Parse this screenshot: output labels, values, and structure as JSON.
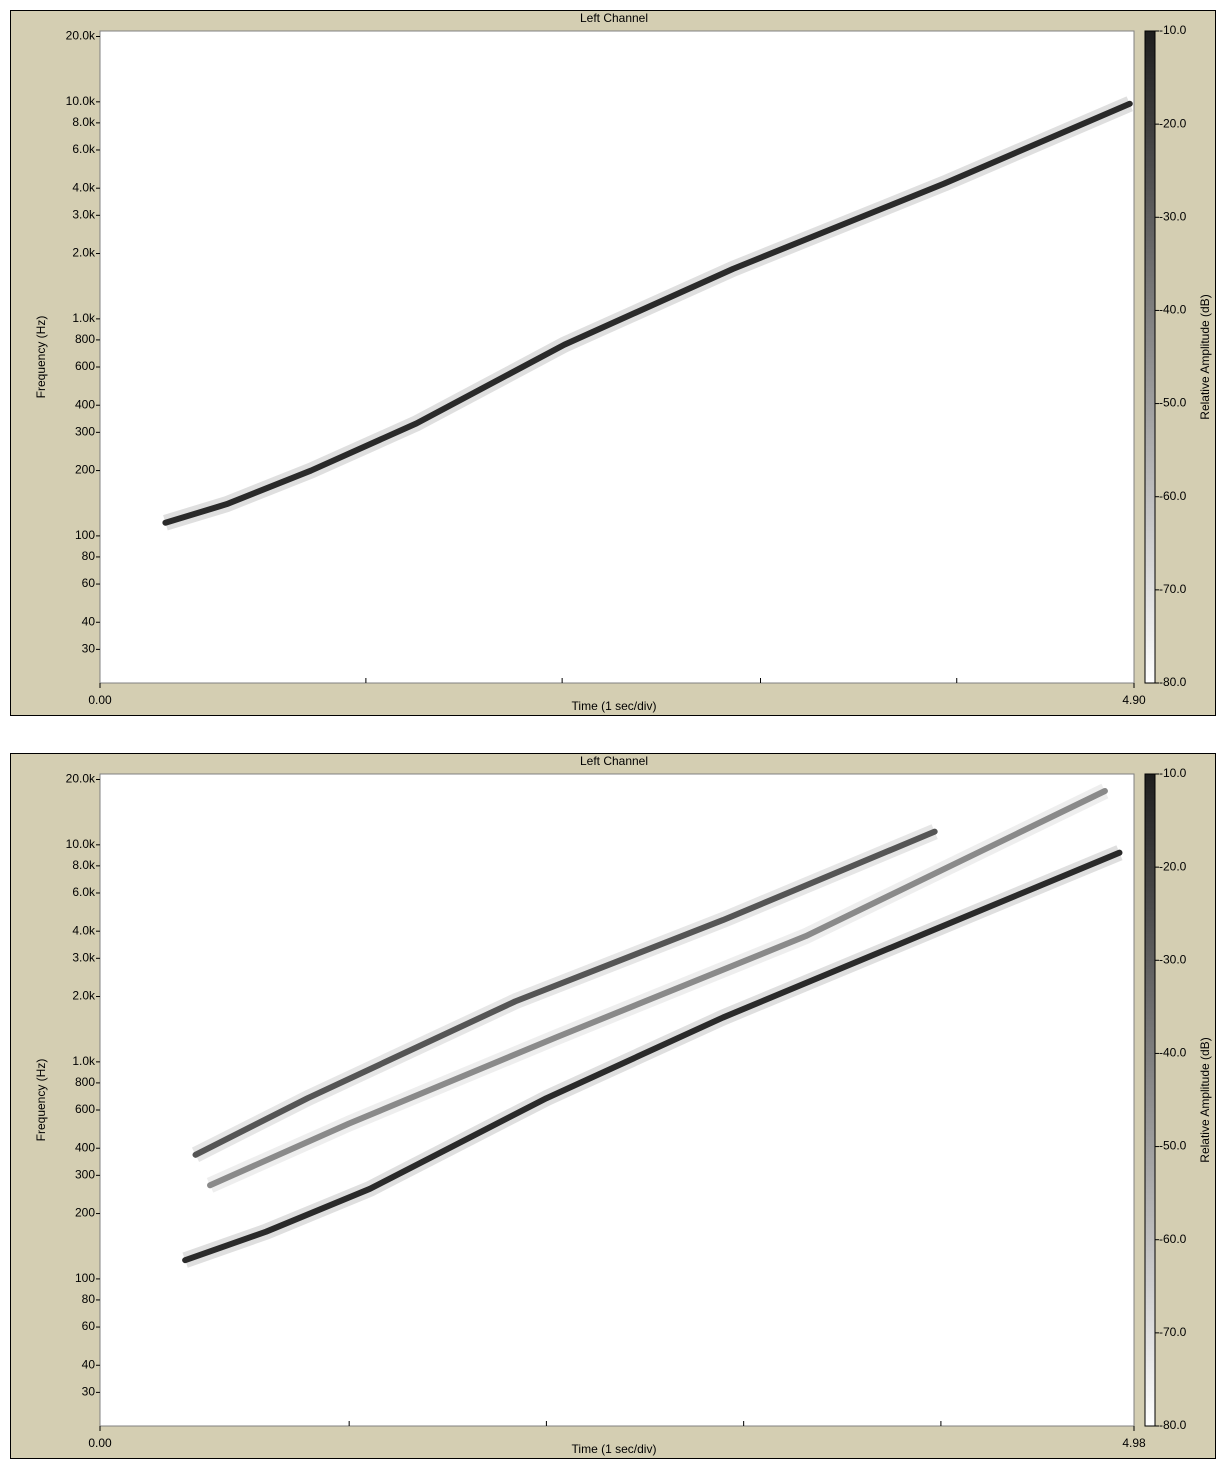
{
  "chart_data": [
    {
      "type": "spectrogram",
      "title": "Left Channel",
      "x_label": "Time (1 sec/div)",
      "y_label": "Frequency (Hz)",
      "xlim": [
        0,
        4.9
      ],
      "xticks": [
        {
          "value": 0,
          "label": "0.00"
        },
        {
          "value": 4.9,
          "label": "4.90"
        }
      ],
      "x_minor_ticks": [
        1.26,
        2.19,
        3.13,
        4.06
      ],
      "ylim": [
        21,
        21200
      ],
      "y_scale": "log",
      "yticks": [
        {
          "value": 20000,
          "label": "20.0k"
        },
        {
          "value": 10000,
          "label": "10.0k"
        },
        {
          "value": 8000,
          "label": "8.0k"
        },
        {
          "value": 6000,
          "label": "6.0k"
        },
        {
          "value": 4000,
          "label": "4.0k"
        },
        {
          "value": 3000,
          "label": "3.0k"
        },
        {
          "value": 2000,
          "label": "2.0k"
        },
        {
          "value": 1000,
          "label": "1.0k"
        },
        800,
        600,
        400,
        300,
        200,
        100,
        80,
        60,
        40,
        30
      ],
      "series": [
        {
          "color": "#2a2a2a",
          "x": [
            0.31,
            0.6,
            1.0,
            1.5,
            2.2,
            3.0,
            4.0,
            4.88
          ],
          "values": [
            115,
            140,
            200,
            330,
            760,
            1700,
            4200,
            9800
          ]
        }
      ],
      "colorbar": {
        "label": "Relative Amplitude (dB)",
        "lim": [
          -80,
          -10
        ],
        "colors": [
          "#ffffff",
          "#1e1e1e"
        ],
        "ticks": [
          {
            "value": -10,
            "label": "-10.0"
          },
          {
            "value": -20,
            "label": "-20.0"
          },
          {
            "value": -30,
            "label": "-30.0"
          },
          {
            "value": -40,
            "label": "-40.0"
          },
          {
            "value": -50,
            "label": "-50.0"
          },
          {
            "value": -60,
            "label": "-60.0"
          },
          {
            "value": -70,
            "label": "-70.0"
          },
          {
            "value": -80,
            "label": "-80.0"
          }
        ]
      }
    },
    {
      "type": "spectrogram",
      "title": "Left Channel",
      "x_label": "Time (1 sec/div)",
      "y_label": "Frequency (Hz)",
      "xlim": [
        0,
        4.98
      ],
      "xticks": [
        {
          "value": 0,
          "label": "0.00"
        },
        {
          "value": 4.98,
          "label": "4.98"
        }
      ],
      "x_minor_ticks": [
        1.2,
        2.15,
        3.1,
        4.05
      ],
      "ylim": [
        21,
        21200
      ],
      "y_scale": "log",
      "yticks": [
        {
          "value": 20000,
          "label": "20.0k"
        },
        {
          "value": 10000,
          "label": "10.0k"
        },
        {
          "value": 8000,
          "label": "8.0k"
        },
        {
          "value": 6000,
          "label": "6.0k"
        },
        {
          "value": 4000,
          "label": "4.0k"
        },
        {
          "value": 3000,
          "label": "3.0k"
        },
        {
          "value": 2000,
          "label": "2.0k"
        },
        {
          "value": 1000,
          "label": "1.0k"
        },
        800,
        600,
        400,
        300,
        200,
        100,
        80,
        60,
        40,
        30
      ],
      "series": [
        {
          "color": "#2a2a2a",
          "x": [
            0.41,
            0.8,
            1.3,
            2.15,
            3.0,
            4.0,
            4.91
          ],
          "values": [
            122,
            165,
            260,
            680,
            1600,
            4000,
            9200
          ]
        },
        {
          "color": "#555555",
          "x": [
            0.46,
            1.0,
            2.0,
            3.0,
            4.02
          ],
          "values": [
            373,
            680,
            1900,
            4500,
            11500
          ]
        },
        {
          "color": "#8a8a8a",
          "x": [
            0.53,
            1.2,
            2.2,
            3.4,
            4.84
          ],
          "values": [
            270,
            520,
            1300,
            3800,
            17700
          ]
        }
      ],
      "colorbar": {
        "label": "Relative Amplitude (dB)",
        "lim": [
          -80,
          -10
        ],
        "colors": [
          "#ffffff",
          "#1e1e1e"
        ],
        "ticks": [
          {
            "value": -10,
            "label": "-10.0"
          },
          {
            "value": -20,
            "label": "-20.0"
          },
          {
            "value": -30,
            "label": "-30.0"
          },
          {
            "value": -40,
            "label": "-40.0"
          },
          {
            "value": -50,
            "label": "-50.0"
          },
          {
            "value": -60,
            "label": "-60.0"
          },
          {
            "value": -70,
            "label": "-70.0"
          },
          {
            "value": -80,
            "label": "-80.0"
          }
        ]
      }
    }
  ]
}
